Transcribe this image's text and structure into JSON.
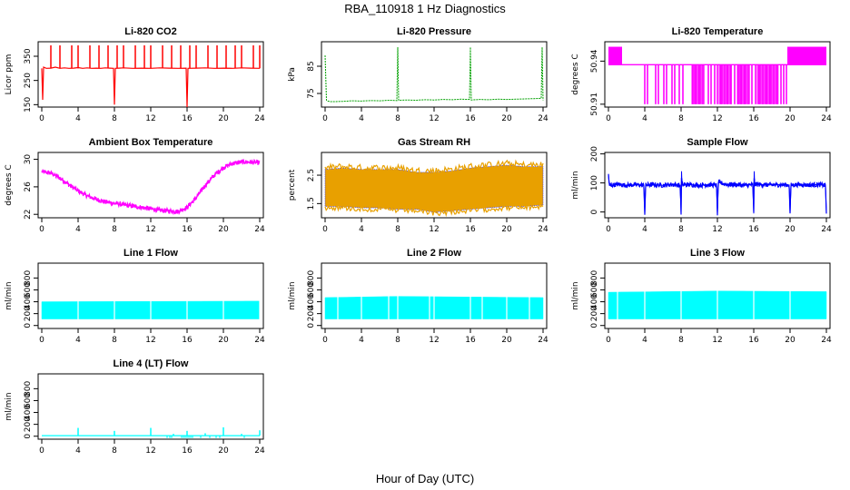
{
  "figure": {
    "title": "RBA_110918  1 Hz Diagnostics",
    "xlabel": "Hour of Day (UTC)"
  },
  "chart_data": [
    {
      "id": "co2",
      "type": "line",
      "title": "Li-820 CO2",
      "ylabel": "Licor ppm",
      "color": "#ff0000",
      "xlim": [
        0,
        24
      ],
      "xticks": [
        0,
        4,
        8,
        12,
        16,
        20,
        24
      ],
      "ylim": [
        140,
        410
      ],
      "yticks": [
        150,
        250,
        350
      ],
      "series": [
        {
          "x": [
            0.0,
            0.1,
            0.2,
            0.5,
            1.0,
            1.5,
            2.0,
            2.5,
            3.0,
            3.5,
            4.0,
            4.5,
            5.0,
            5.5,
            6.0,
            6.5,
            7.0,
            7.5,
            7.9,
            8.0,
            8.1,
            8.5,
            9.0,
            10.0,
            11.0,
            12.0,
            13.0,
            14.0,
            15.0,
            15.9,
            16.0,
            16.1,
            17.0,
            18.0,
            19.0,
            20.0,
            21.0,
            22.0,
            23.0,
            24.0
          ],
          "values": [
            300,
            170,
            305,
            300,
            301,
            305,
            300,
            302,
            300,
            301,
            303,
            300,
            302,
            300,
            301,
            300,
            302,
            301,
            300,
            150,
            300,
            301,
            302,
            300,
            301,
            300,
            302,
            301,
            300,
            301,
            140,
            300,
            301,
            302,
            300,
            301,
            300,
            302,
            301,
            300
          ]
        }
      ],
      "spikes": [
        {
          "x": 1.0,
          "y": 395
        },
        {
          "x": 2.0,
          "y": 395
        },
        {
          "x": 3.3,
          "y": 395
        },
        {
          "x": 4.0,
          "y": 395
        },
        {
          "x": 5.3,
          "y": 395
        },
        {
          "x": 6.3,
          "y": 395
        },
        {
          "x": 7.3,
          "y": 395
        },
        {
          "x": 8.3,
          "y": 395
        },
        {
          "x": 9.0,
          "y": 395
        },
        {
          "x": 10.3,
          "y": 395
        },
        {
          "x": 11.3,
          "y": 395
        },
        {
          "x": 12.0,
          "y": 395
        },
        {
          "x": 13.3,
          "y": 395
        },
        {
          "x": 14.3,
          "y": 395
        },
        {
          "x": 15.3,
          "y": 395
        },
        {
          "x": 16.3,
          "y": 395
        },
        {
          "x": 17.0,
          "y": 395
        },
        {
          "x": 18.3,
          "y": 395
        },
        {
          "x": 19.3,
          "y": 395
        },
        {
          "x": 20.3,
          "y": 395
        },
        {
          "x": 21.3,
          "y": 395
        },
        {
          "x": 22.0,
          "y": 395
        },
        {
          "x": 23.3,
          "y": 395
        },
        {
          "x": 24.0,
          "y": 395
        }
      ]
    },
    {
      "id": "pressure",
      "type": "line",
      "title": "Li-820 Pressure",
      "ylabel": "kPa",
      "color": "#00a000",
      "xlim": [
        0,
        24
      ],
      "xticks": [
        0,
        4,
        8,
        12,
        16,
        20,
        24
      ],
      "ylim": [
        70,
        94
      ],
      "yticks": [
        75,
        85
      ],
      "series": [
        {
          "x": [
            0.0,
            0.1,
            0.15,
            0.3,
            0.6,
            1.0,
            2,
            3,
            4,
            5,
            6,
            7,
            7.9,
            8.0,
            8.1,
            9,
            10,
            11,
            12,
            13,
            14,
            15,
            15.9,
            16.0,
            16.1,
            17,
            18,
            19,
            20,
            21,
            22,
            23,
            23.8,
            23.9,
            24.0
          ],
          "values": [
            89,
            78,
            72.5,
            72.2,
            72.0,
            72.0,
            72.1,
            72.3,
            72.2,
            72.4,
            72.3,
            72.5,
            72.4,
            92,
            72.5,
            72.6,
            72.5,
            72.7,
            72.6,
            72.8,
            72.7,
            72.9,
            72.8,
            92,
            72.6,
            72.8,
            72.7,
            72.9,
            72.8,
            72.9,
            73.0,
            73.1,
            73.2,
            92,
            72.5
          ]
        }
      ]
    },
    {
      "id": "licor-temp",
      "type": "line",
      "title": "Li-820 Temperature",
      "ylabel": "degrees C",
      "color": "#ff00ff",
      "xlim": [
        0,
        24
      ],
      "xticks": [
        0,
        4,
        8,
        12,
        16,
        20,
        24
      ],
      "ylim": [
        50.908,
        50.9535
      ],
      "yticks": [
        50.91,
        50.94
      ],
      "ytick_labels": [
        "50.91",
        "50.94"
      ],
      "level_labels": [
        "50.9225",
        "50.9375",
        "50.94375",
        "50.9375",
        "50.9225"
      ],
      "levels": {
        "high": 50.95,
        "mid": 50.9375,
        "low": 50.91
      },
      "toggle_bands": [
        [
          0.0,
          1.5
        ],
        [
          19.7,
          24.0
        ]
      ],
      "drops": [
        4.0,
        4.3,
        5.2,
        5.5,
        6.1,
        6.4,
        7.0,
        7.3,
        7.8,
        8.2,
        9.3,
        9.6,
        10.0,
        10.4,
        11.0,
        11.3,
        11.7,
        12.0,
        12.4,
        12.8,
        13.1,
        13.5,
        13.9,
        14.3,
        14.6,
        15.0,
        15.4,
        15.8,
        16.2,
        16.6,
        17.0,
        17.4,
        17.8,
        18.2,
        18.6,
        19.0,
        19.3,
        19.6
      ],
      "series": [
        {
          "x": [
            0,
            24
          ],
          "values": [
            50.9375,
            50.9375
          ]
        }
      ]
    },
    {
      "id": "box-temp",
      "type": "line",
      "title": "Ambient Box Temperature",
      "ylabel": "degrees C",
      "color": "#ff00ff",
      "xlim": [
        0,
        24
      ],
      "xticks": [
        0,
        4,
        8,
        12,
        16,
        20,
        24
      ],
      "ylim": [
        21.5,
        31
      ],
      "yticks": [
        22,
        26,
        30
      ],
      "noise": 0.35,
      "series": [
        {
          "x": [
            0,
            1,
            2,
            3,
            4,
            5,
            6,
            7,
            8,
            9,
            10,
            11,
            12,
            13,
            14,
            15,
            16,
            17,
            18,
            19,
            20,
            21,
            22,
            23,
            24
          ],
          "values": [
            28.2,
            28.0,
            27.3,
            26.3,
            25.4,
            24.7,
            24.2,
            23.8,
            23.6,
            23.4,
            23.2,
            23.0,
            22.8,
            22.6,
            22.5,
            22.4,
            23.0,
            24.4,
            26.2,
            27.7,
            28.8,
            29.4,
            29.6,
            29.6,
            29.5
          ]
        }
      ]
    },
    {
      "id": "rh",
      "type": "line",
      "title": "Gas Stream RH",
      "ylabel": "percent",
      "color": "#e8a000",
      "edge_color": "#3333ff",
      "xlim": [
        0,
        24
      ],
      "xticks": [
        0,
        4,
        8,
        12,
        16,
        20,
        24
      ],
      "ylim": [
        1.0,
        3.3
      ],
      "yticks": [
        1.5,
        2.5
      ],
      "bands": [
        {
          "x": [
            0,
            2,
            4,
            6,
            8,
            10,
            12,
            14,
            16,
            18,
            20,
            22,
            24
          ],
          "low": [
            1.4,
            1.4,
            1.35,
            1.35,
            1.3,
            1.3,
            1.2,
            1.25,
            1.3,
            1.35,
            1.4,
            1.4,
            1.45
          ],
          "high": [
            2.7,
            2.75,
            2.7,
            2.7,
            2.7,
            2.6,
            2.6,
            2.65,
            2.75,
            2.8,
            2.85,
            2.8,
            2.8
          ]
        }
      ],
      "series": [
        {
          "x": [
            0,
            24
          ],
          "values": [
            2.0,
            2.1
          ]
        }
      ]
    },
    {
      "id": "sample-flow",
      "type": "line",
      "title": "Sample Flow",
      "ylabel": "ml/min",
      "color": "#0000ff",
      "xlim": [
        0,
        24
      ],
      "xticks": [
        0,
        4,
        8,
        12,
        16,
        20,
        24
      ],
      "ylim": [
        -20,
        205
      ],
      "yticks": [
        0,
        100,
        200
      ],
      "series": [
        {
          "x": [
            0,
            0.1,
            0.2,
            1,
            2,
            3,
            3.9,
            4.0,
            4.1,
            5,
            6,
            7,
            7.9,
            8.0,
            8.05,
            8.1,
            9,
            10,
            11,
            11.9,
            12.0,
            12.1,
            13,
            14,
            15,
            15.9,
            16.0,
            16.05,
            16.1,
            17,
            18,
            19,
            19.9,
            20.0,
            20.1,
            21,
            22,
            23,
            23.9,
            24.0
          ],
          "values": [
            130,
            92,
            92,
            95,
            92,
            94,
            92,
            -5,
            93,
            94,
            92,
            95,
            92,
            -5,
            140,
            93,
            94,
            92,
            94,
            92,
            -5,
            102,
            95,
            94,
            92,
            94,
            -5,
            140,
            95,
            94,
            93,
            94,
            93,
            -5,
            93,
            94,
            93,
            94,
            92,
            -5
          ]
        }
      ],
      "noise": 8
    },
    {
      "id": "line1-flow",
      "type": "line",
      "title": "Line 1 Flow",
      "ylabel": "ml/min",
      "color": "#00ffff",
      "xlim": [
        0,
        24
      ],
      "xticks": [
        0,
        4,
        8,
        12,
        16,
        20,
        24
      ],
      "ylim": [
        -50,
        1050
      ],
      "yticks": [
        0,
        200,
        400,
        600,
        800
      ],
      "bands": [
        {
          "x": [
            0,
            24
          ],
          "low": [
            110,
            110
          ],
          "high": [
            400,
            410
          ]
        }
      ],
      "gaps": [
        4.0,
        8.0,
        12.0,
        16.0,
        20.0,
        24.0
      ],
      "series": [
        {
          "x": [
            0,
            24
          ],
          "values": [
            255,
            255
          ]
        }
      ]
    },
    {
      "id": "line2-flow",
      "type": "line",
      "title": "Line 2 Flow",
      "ylabel": "ml/min",
      "color": "#00ffff",
      "xlim": [
        0,
        24
      ],
      "xticks": [
        0,
        4,
        8,
        12,
        16,
        20,
        24
      ],
      "ylim": [
        -50,
        1050
      ],
      "yticks": [
        0,
        200,
        400,
        600,
        800
      ],
      "bands": [
        {
          "x": [
            0,
            8,
            16,
            24
          ],
          "low": [
            110,
            110,
            110,
            110
          ],
          "high": [
            470,
            490,
            480,
            470
          ]
        }
      ],
      "gaps": [
        1.4,
        4.0,
        7.0,
        8.0,
        11.5,
        12.0,
        16.0,
        17.3,
        20.0,
        22.5
      ],
      "series": [
        {
          "x": [
            0,
            24
          ],
          "values": [
            290,
            290
          ]
        }
      ]
    },
    {
      "id": "line3-flow",
      "type": "line",
      "title": "Line 3 Flow",
      "ylabel": "ml/min",
      "color": "#00ffff",
      "xlim": [
        0,
        24
      ],
      "xticks": [
        0,
        4,
        8,
        12,
        16,
        20,
        24
      ],
      "ylim": [
        -50,
        1050
      ],
      "yticks": [
        0,
        200,
        400,
        600,
        800
      ],
      "bands": [
        {
          "x": [
            0,
            12,
            24
          ],
          "low": [
            110,
            110,
            110
          ],
          "high": [
            560,
            580,
            570
          ]
        }
      ],
      "gaps": [
        1.0,
        4.0,
        8.0,
        12.0,
        16.0,
        20.0
      ],
      "series": [
        {
          "x": [
            0,
            24
          ],
          "values": [
            335,
            345
          ]
        }
      ]
    },
    {
      "id": "line4-flow",
      "type": "line",
      "title": "Line 4 (LT) Flow",
      "ylabel": "ml/min",
      "color": "#00ffff",
      "xlim": [
        0,
        24
      ],
      "xticks": [
        0,
        4,
        8,
        12,
        16,
        20,
        24
      ],
      "ylim": [
        -50,
        1050
      ],
      "yticks": [
        0,
        200,
        400,
        600,
        800
      ],
      "spikes": [
        {
          "x": 4.0,
          "y": 140
        },
        {
          "x": 8.0,
          "y": 90
        },
        {
          "x": 12.0,
          "y": 140
        },
        {
          "x": 14.5,
          "y": 40
        },
        {
          "x": 16.0,
          "y": 90
        },
        {
          "x": 18.0,
          "y": 50
        },
        {
          "x": 20.0,
          "y": 150
        },
        {
          "x": 22.0,
          "y": 40
        },
        {
          "x": 24.0,
          "y": 100
        }
      ],
      "dips": [
        13.8,
        14.1,
        14.3,
        15.4,
        15.6,
        15.8,
        16.0,
        16.2,
        16.4,
        16.6,
        17.5,
        18.5,
        19.2,
        19.6,
        22.3
      ],
      "series": [
        {
          "x": [
            0,
            24
          ],
          "values": [
            10,
            10
          ]
        }
      ]
    }
  ]
}
